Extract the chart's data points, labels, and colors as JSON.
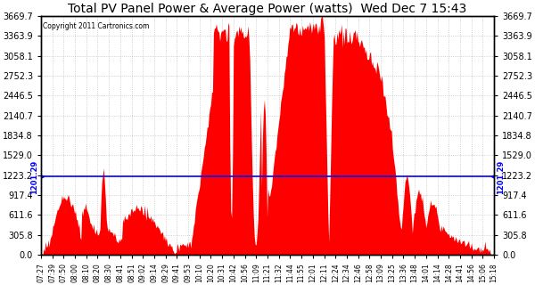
{
  "title": "Total PV Panel Power & Average Power (watts)  Wed Dec 7 15:43",
  "copyright": "Copyright 2011 Cartronics.com",
  "avg_line_value": 1201.29,
  "avg_label": "1201.29",
  "fill_color": "#FF0000",
  "line_color": "#0000FF",
  "background_color": "#FFFFFF",
  "grid_color": "#BBBBBB",
  "yticks": [
    0.0,
    305.8,
    611.6,
    917.4,
    1223.2,
    1529.0,
    1834.8,
    2140.7,
    2446.5,
    2752.3,
    3058.1,
    3363.9,
    3669.7
  ],
  "ymin": 0.0,
  "ymax": 3669.7,
  "xlabel_fontsize": 5.5,
  "ylabel_fontsize": 7.0,
  "title_fontsize": 10,
  "xtick_labels": [
    "07:27",
    "07:39",
    "07:50",
    "08:00",
    "08:10",
    "08:20",
    "08:30",
    "08:41",
    "08:51",
    "09:02",
    "09:14",
    "09:29",
    "09:41",
    "09:53",
    "10:10",
    "10:20",
    "10:31",
    "10:42",
    "10:56",
    "11:09",
    "11:21",
    "11:32",
    "11:44",
    "11:55",
    "12:01",
    "12:11",
    "12:24",
    "12:34",
    "12:46",
    "12:58",
    "13:09",
    "13:25",
    "13:36",
    "13:48",
    "14:01",
    "14:14",
    "14:28",
    "14:41",
    "14:56",
    "15:06",
    "15:18"
  ]
}
